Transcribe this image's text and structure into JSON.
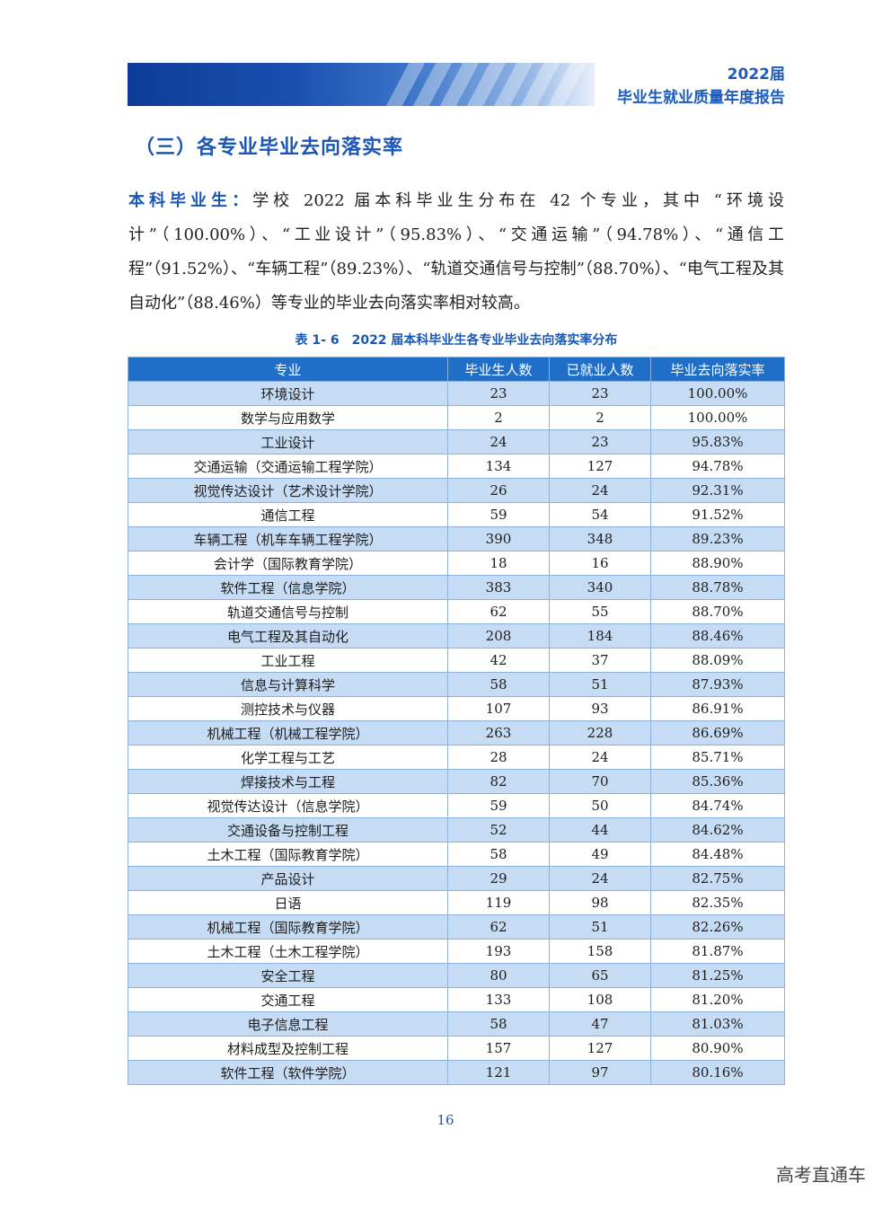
{
  "header": {
    "year": "2022届",
    "report_name": "毕业生就业质量年度报告"
  },
  "section": {
    "title": "（三）各专业毕业去向落实率"
  },
  "paragraph": {
    "lead": "本科毕业生：",
    "text": "学校 2022 届本科毕业生分布在 42 个专业，其中 “环境设计”（100.00%）、“工业设计”（95.83%）、“交通运输”（94.78%）、“通信工程”（91.52%）、“车辆工程”（89.23%）、“轨道交通信号与控制”（88.70%）、“电气工程及其自动化”（88.46%）等专业的毕业去向落实率相对较高。"
  },
  "table": {
    "caption": "表 1- 6　2022 届本科毕业生各专业毕业去向落实率分布",
    "headers": [
      "专业",
      "毕业生人数",
      "已就业人数",
      "毕业去向落实率"
    ],
    "rows": [
      [
        "环境设计",
        "23",
        "23",
        "100.00%"
      ],
      [
        "数学与应用数学",
        "2",
        "2",
        "100.00%"
      ],
      [
        "工业设计",
        "24",
        "23",
        "95.83%"
      ],
      [
        "交通运输（交通运输工程学院）",
        "134",
        "127",
        "94.78%"
      ],
      [
        "视觉传达设计（艺术设计学院）",
        "26",
        "24",
        "92.31%"
      ],
      [
        "通信工程",
        "59",
        "54",
        "91.52%"
      ],
      [
        "车辆工程（机车车辆工程学院）",
        "390",
        "348",
        "89.23%"
      ],
      [
        "会计学（国际教育学院）",
        "18",
        "16",
        "88.90%"
      ],
      [
        "软件工程（信息学院）",
        "383",
        "340",
        "88.78%"
      ],
      [
        "轨道交通信号与控制",
        "62",
        "55",
        "88.70%"
      ],
      [
        "电气工程及其自动化",
        "208",
        "184",
        "88.46%"
      ],
      [
        "工业工程",
        "42",
        "37",
        "88.09%"
      ],
      [
        "信息与计算科学",
        "58",
        "51",
        "87.93%"
      ],
      [
        "测控技术与仪器",
        "107",
        "93",
        "86.91%"
      ],
      [
        "机械工程（机械工程学院）",
        "263",
        "228",
        "86.69%"
      ],
      [
        "化学工程与工艺",
        "28",
        "24",
        "85.71%"
      ],
      [
        "焊接技术与工程",
        "82",
        "70",
        "85.36%"
      ],
      [
        "视觉传达设计（信息学院）",
        "59",
        "50",
        "84.74%"
      ],
      [
        "交通设备与控制工程",
        "52",
        "44",
        "84.62%"
      ],
      [
        "土木工程（国际教育学院）",
        "58",
        "49",
        "84.48%"
      ],
      [
        "产品设计",
        "29",
        "24",
        "82.75%"
      ],
      [
        "日语",
        "119",
        "98",
        "82.35%"
      ],
      [
        "机械工程（国际教育学院）",
        "62",
        "51",
        "82.26%"
      ],
      [
        "土木工程（土木工程学院）",
        "193",
        "158",
        "81.87%"
      ],
      [
        "安全工程",
        "80",
        "65",
        "81.25%"
      ],
      [
        "交通工程",
        "133",
        "108",
        "81.20%"
      ],
      [
        "电子信息工程",
        "58",
        "47",
        "81.03%"
      ],
      [
        "材料成型及控制工程",
        "157",
        "127",
        "80.90%"
      ],
      [
        "软件工程（软件学院）",
        "121",
        "97",
        "80.16%"
      ]
    ]
  },
  "page_number": "16",
  "watermark": "高考直通车",
  "colors": {
    "accent_blue": "#1a56b4",
    "header_blue": "#1f6fc9",
    "row_stripe": "#c6dcf4"
  }
}
